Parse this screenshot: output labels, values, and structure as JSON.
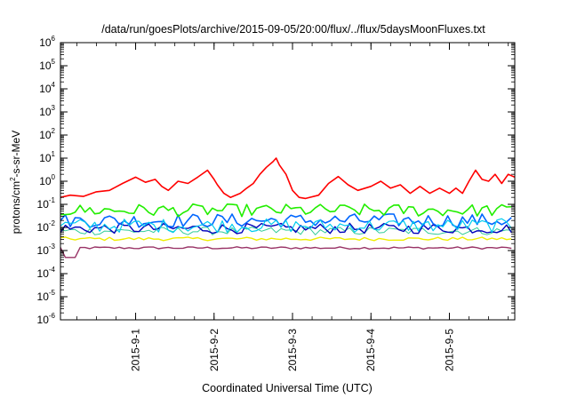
{
  "chart_data": {
    "type": "line",
    "title": "/data/run/goesPlots/archive/2015-09-05/20:00/flux/../flux/5daysMoonFluxes.txt",
    "xlabel": "Coordinated Universal Time (UTC)",
    "ylabel": {
      "base": "protons/cm",
      "exponent": "2",
      "rest": "-s-sr-MeV"
    },
    "y_scale": "log",
    "ylim": [
      1e-06,
      1000000.0
    ],
    "y_ticks": [
      {
        "value": 1e-06,
        "mantissa": "10",
        "exponent": "-6"
      },
      {
        "value": 1e-05,
        "mantissa": "10",
        "exponent": "-5"
      },
      {
        "value": 0.0001,
        "mantissa": "10",
        "exponent": "-4"
      },
      {
        "value": 0.001,
        "mantissa": "10",
        "exponent": "-3"
      },
      {
        "value": 0.01,
        "mantissa": "10",
        "exponent": "-2"
      },
      {
        "value": 0.1,
        "mantissa": "10",
        "exponent": "-1"
      },
      {
        "value": 1,
        "mantissa": "10",
        "exponent": "0"
      },
      {
        "value": 10.0,
        "mantissa": "10",
        "exponent": "1"
      },
      {
        "value": 100.0,
        "mantissa": "10",
        "exponent": "2"
      },
      {
        "value": 1000.0,
        "mantissa": "10",
        "exponent": "3"
      },
      {
        "value": 10000.0,
        "mantissa": "10",
        "exponent": "4"
      },
      {
        "value": 100000.0,
        "mantissa": "10",
        "exponent": "5"
      },
      {
        "value": 1000000.0,
        "mantissa": "10",
        "exponent": "6"
      }
    ],
    "xlim": [
      "2015-08-31T01:00",
      "2015-09-05T20:00"
    ],
    "x_ticks": [
      {
        "value": "2015-09-01T00:00",
        "label": "2015-9-1"
      },
      {
        "value": "2015-09-02T00:00",
        "label": "2015-9-2"
      },
      {
        "value": "2015-09-03T00:00",
        "label": "2015-9-3"
      },
      {
        "value": "2015-09-04T00:00",
        "label": "2015-9-4"
      },
      {
        "value": "2015-09-05T00:00",
        "label": "2015-9-5"
      }
    ],
    "grid": false,
    "legend": "none",
    "series": [
      {
        "color": "#ff0000",
        "width": 1.6,
        "points": [
          [
            "2015-08-31T01:00",
            0.2
          ],
          [
            "2015-08-31T04:00",
            0.25
          ],
          [
            "2015-08-31T08:00",
            0.22
          ],
          [
            "2015-08-31T12:00",
            0.35
          ],
          [
            "2015-08-31T16:00",
            0.4
          ],
          [
            "2015-08-31T20:00",
            0.8
          ],
          [
            "2015-09-01T00:00",
            1.5
          ],
          [
            "2015-09-01T03:00",
            0.9
          ],
          [
            "2015-09-01T06:00",
            1.2
          ],
          [
            "2015-09-01T08:00",
            0.6
          ],
          [
            "2015-09-01T10:00",
            0.4
          ],
          [
            "2015-09-01T13:00",
            1.0
          ],
          [
            "2015-09-01T16:00",
            0.8
          ],
          [
            "2015-09-01T19:00",
            1.5
          ],
          [
            "2015-09-01T22:00",
            3.0
          ],
          [
            "2015-09-02T00:00",
            1.2
          ],
          [
            "2015-09-02T01:00",
            0.7
          ],
          [
            "2015-09-02T03:00",
            0.3
          ],
          [
            "2015-09-02T05:00",
            0.2
          ],
          [
            "2015-09-02T08:00",
            0.3
          ],
          [
            "2015-09-02T10:00",
            0.5
          ],
          [
            "2015-09-02T12:00",
            0.8
          ],
          [
            "2015-09-02T14:00",
            2.0
          ],
          [
            "2015-09-02T16:00",
            4.0
          ],
          [
            "2015-09-02T18:00",
            7.0
          ],
          [
            "2015-09-02T19:00",
            10.0
          ],
          [
            "2015-09-02T20:00",
            5.0
          ],
          [
            "2015-09-02T22:00",
            2.0
          ],
          [
            "2015-09-03T00:00",
            0.4
          ],
          [
            "2015-09-03T02:00",
            0.2
          ],
          [
            "2015-09-03T04:00",
            0.18
          ],
          [
            "2015-09-03T08:00",
            0.25
          ],
          [
            "2015-09-03T11:00",
            0.8
          ],
          [
            "2015-09-03T14:00",
            1.6
          ],
          [
            "2015-09-03T17:00",
            0.7
          ],
          [
            "2015-09-03T20:00",
            0.4
          ],
          [
            "2015-09-04T00:00",
            0.6
          ],
          [
            "2015-09-04T03:00",
            1.0
          ],
          [
            "2015-09-04T06:00",
            0.5
          ],
          [
            "2015-09-04T09:00",
            0.7
          ],
          [
            "2015-09-04T12:00",
            0.3
          ],
          [
            "2015-09-04T15:00",
            0.6
          ],
          [
            "2015-09-04T18:00",
            0.3
          ],
          [
            "2015-09-04T21:00",
            0.5
          ],
          [
            "2015-09-05T00:00",
            0.3
          ],
          [
            "2015-09-05T02:00",
            0.5
          ],
          [
            "2015-09-05T04:00",
            0.3
          ],
          [
            "2015-09-05T06:00",
            1.0
          ],
          [
            "2015-09-05T08:00",
            3.0
          ],
          [
            "2015-09-05T10:00",
            1.2
          ],
          [
            "2015-09-05T12:00",
            1.0
          ],
          [
            "2015-09-05T14:00",
            2.0
          ],
          [
            "2015-09-05T16:00",
            0.8
          ],
          [
            "2015-09-05T18:00",
            2.0
          ],
          [
            "2015-09-05T20:00",
            1.5
          ]
        ]
      },
      {
        "color": "#22ee00",
        "width": 1.6,
        "base": 0.055,
        "spread": 0.55
      },
      {
        "color": "#00ccee",
        "width": 1.2,
        "base": 0.012,
        "spread": 0.6
      },
      {
        "color": "#0066ff",
        "width": 1.6,
        "base": 0.02,
        "spread": 0.6
      },
      {
        "color": "#0000bb",
        "width": 1.4,
        "base": 0.009,
        "spread": 0.45
      },
      {
        "color": "#33cc99",
        "width": 1.0,
        "base": 0.007,
        "spread": 0.35
      },
      {
        "color": "#eeee00",
        "width": 1.4,
        "base": 0.0032,
        "spread": 0.15
      },
      {
        "color": "#993366",
        "width": 1.4,
        "base": 0.0013,
        "spread": 0.1,
        "dips": [
          [
            "2015-08-31T04:00",
            0.0005
          ]
        ]
      }
    ]
  }
}
